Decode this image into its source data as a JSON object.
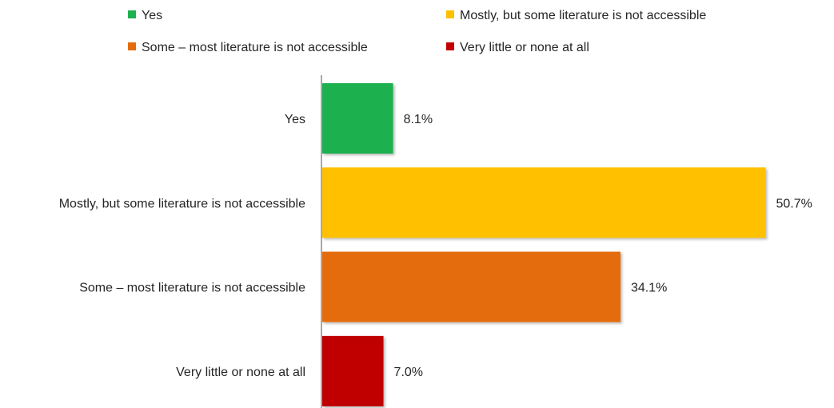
{
  "chart_data": {
    "type": "bar",
    "orientation": "horizontal",
    "categories": [
      "Yes",
      "Mostly, but some literature is not accessible",
      "Some – most literature is not accessible",
      "Very little or none at all"
    ],
    "values": [
      8.1,
      50.7,
      34.1,
      7.0
    ],
    "value_labels": [
      "8.1%",
      "50.7%",
      "34.1%",
      "7.0%"
    ],
    "colors": [
      "#1fb050",
      "#ffc000",
      "#e46c0a",
      "#c00000"
    ],
    "legend": {
      "placement": "top",
      "entries": [
        "Yes",
        "Mostly, but some literature is not accessible",
        "Some – most literature is not accessible",
        "Very little or none at all"
      ]
    },
    "title": "",
    "xlabel": "",
    "ylabel": "",
    "xlim": [
      0,
      52.3
    ],
    "grid": false
  }
}
